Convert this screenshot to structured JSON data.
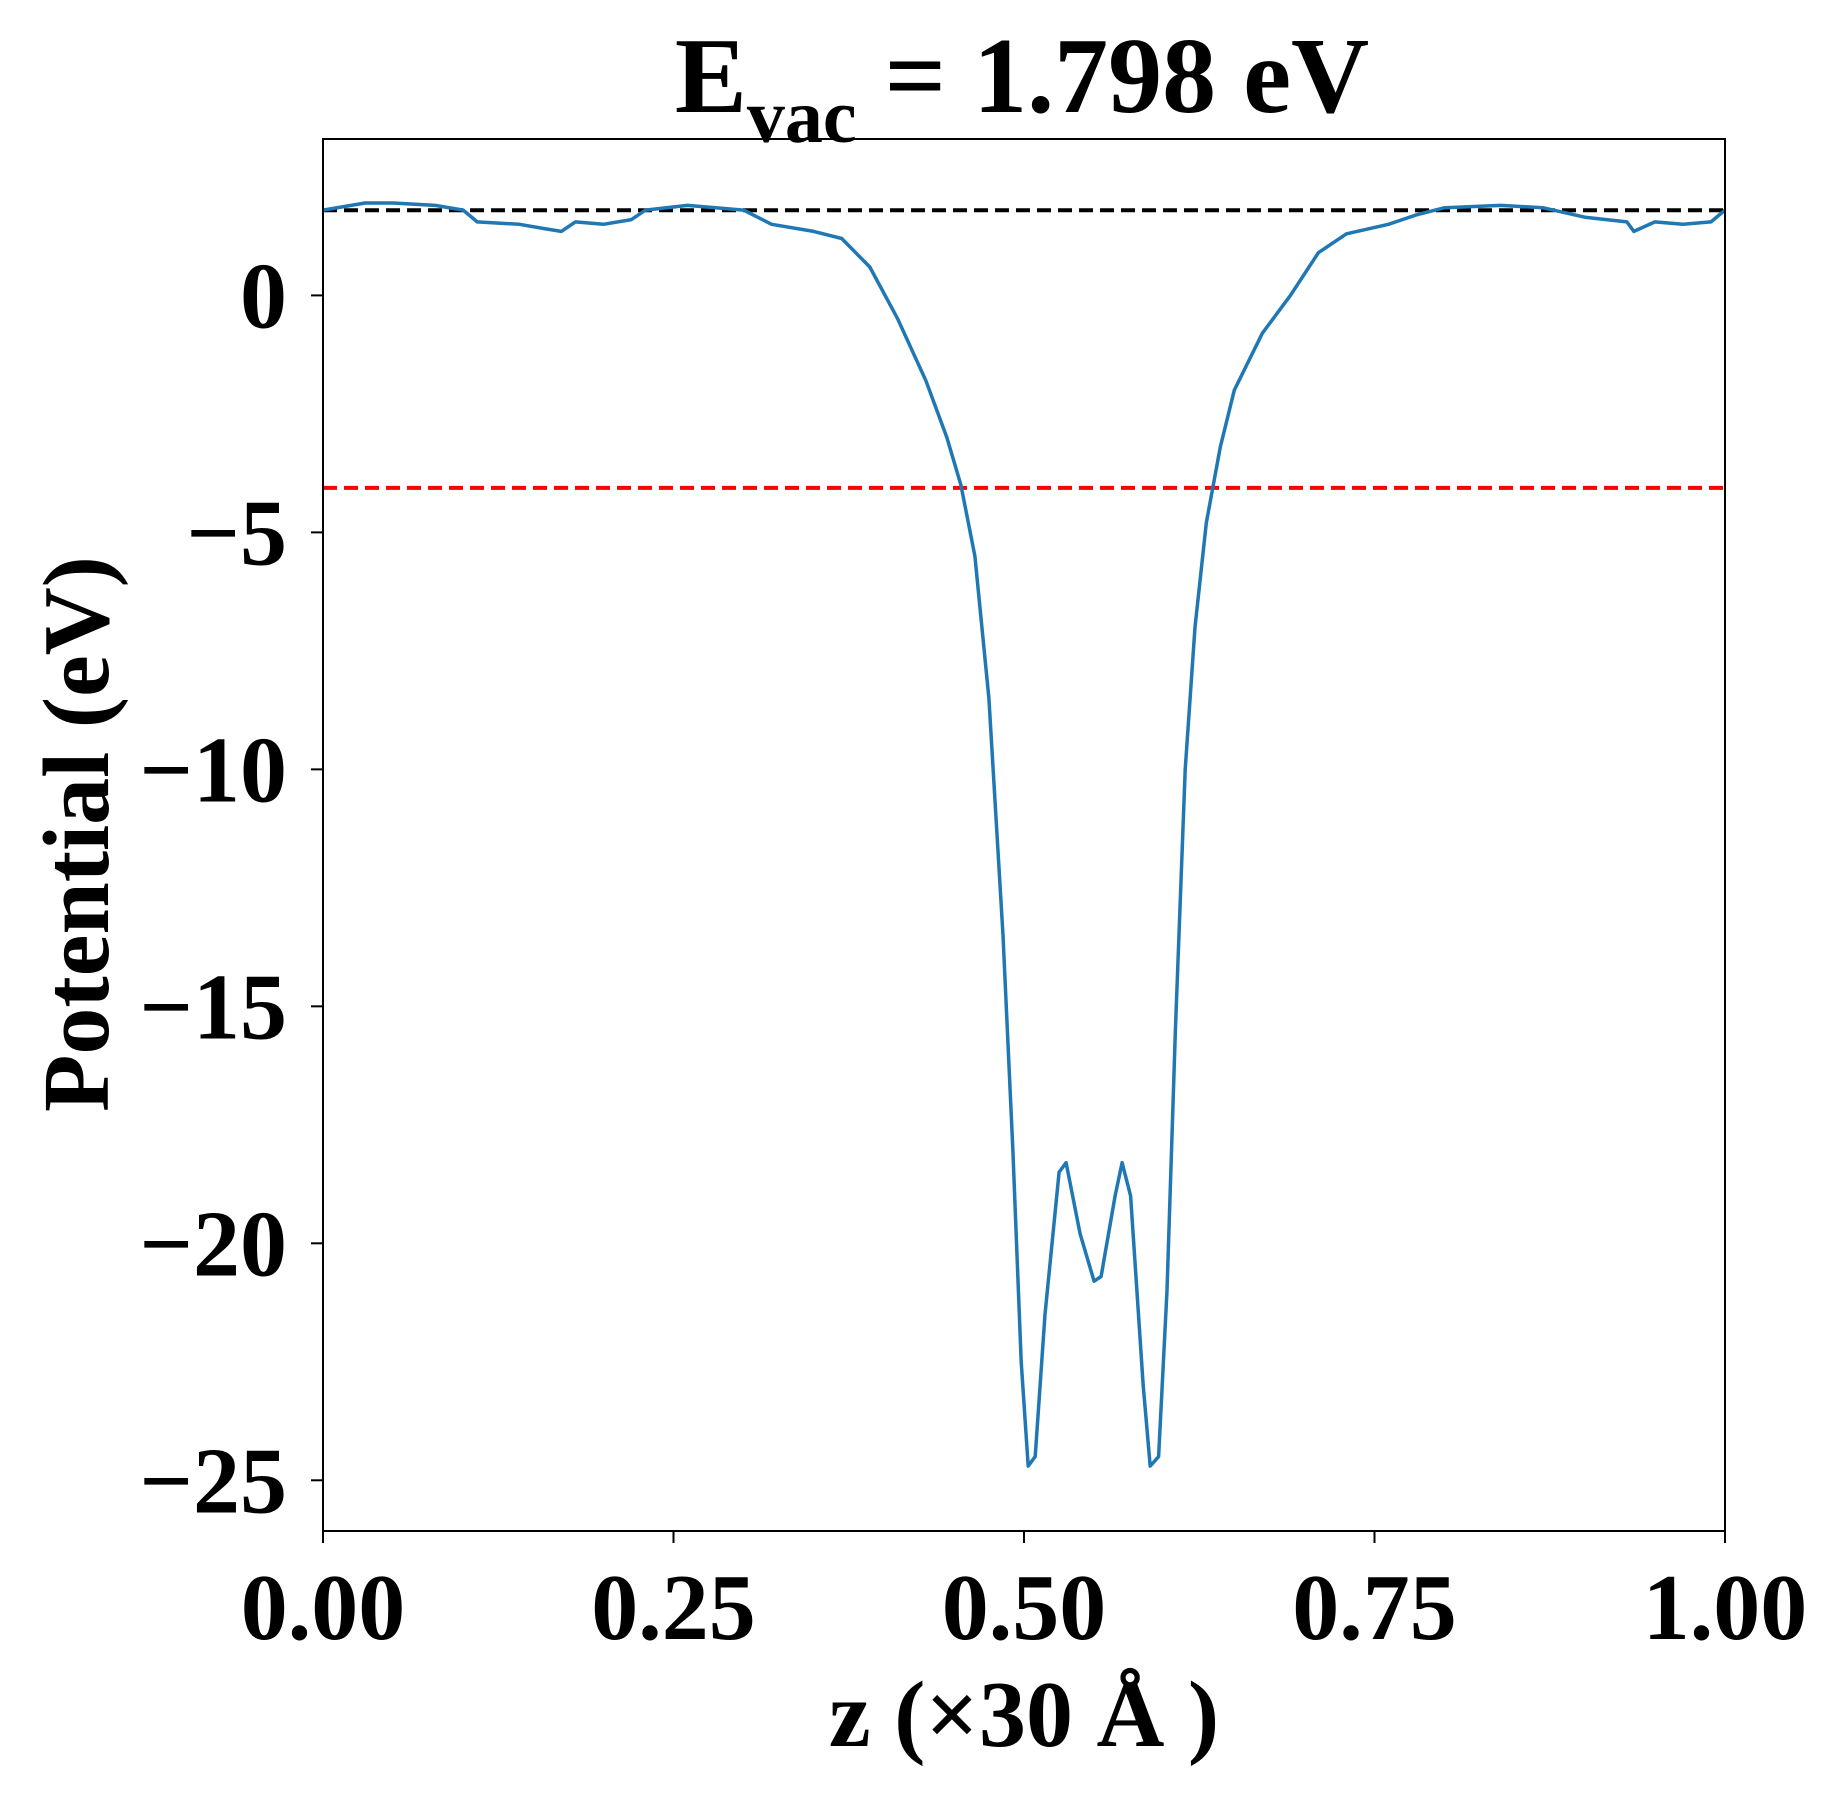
{
  "chart_data": {
    "type": "line",
    "title": {
      "main": "E",
      "sub": "vac",
      "rest": "= 1.798 eV"
    },
    "xlabel": "z (×30 Å )",
    "ylabel": "Potential (eV)",
    "xlim": [
      0,
      1
    ],
    "ylim": [
      -26.07,
      3.3
    ],
    "xticks": [
      {
        "value": 0,
        "label": "0.00"
      },
      {
        "value": 0.25,
        "label": "0.25"
      },
      {
        "value": 0.5,
        "label": "0.50"
      },
      {
        "value": 0.75,
        "label": "0.75"
      },
      {
        "value": 1,
        "label": "1.00"
      }
    ],
    "yticks": [
      0,
      {
        "value": -5,
        "label": "−5"
      },
      {
        "value": -10,
        "label": "−10"
      },
      {
        "value": -15,
        "label": "−15"
      },
      {
        "value": -20,
        "label": "−20"
      },
      {
        "value": -25,
        "label": "−25"
      }
    ],
    "hlines": [
      {
        "value": 1.798,
        "color": "#000000"
      },
      {
        "value": -4.06,
        "color": "#ff0000"
      }
    ],
    "x": [
      0,
      0.03,
      0.05,
      0.08,
      0.1,
      0.11,
      0.14,
      0.16,
      0.17,
      0.18,
      0.2,
      0.22,
      0.23,
      0.26,
      0.3,
      0.32,
      0.35,
      0.37,
      0.39,
      0.41,
      0.43,
      0.445,
      0.455,
      0.465,
      0.475,
      0.485,
      0.492,
      0.498,
      0.503,
      0.508,
      0.515,
      0.525,
      0.53,
      0.54,
      0.55,
      0.555,
      0.565,
      0.57,
      0.576,
      0.585,
      0.59,
      0.596,
      0.602,
      0.608,
      0.615,
      0.622,
      0.63,
      0.64,
      0.65,
      0.67,
      0.69,
      0.71,
      0.73,
      0.76,
      0.78,
      0.8,
      0.84,
      0.87,
      0.9,
      0.93,
      0.935,
      0.95,
      0.97,
      0.99,
      1.0
    ],
    "series": [
      {
        "color": "#1f77b4",
        "values": [
          1.8,
          1.95,
          1.95,
          1.9,
          1.8,
          1.55,
          1.5,
          1.4,
          1.35,
          1.55,
          1.5,
          1.6,
          1.8,
          1.9,
          1.8,
          1.5,
          1.35,
          1.2,
          0.6,
          -0.5,
          -1.8,
          -3.0,
          -4.0,
          -5.5,
          -8.5,
          -13.5,
          -18,
          -22.5,
          -24.7,
          -24.5,
          -21.5,
          -18.5,
          -18.3,
          -19.8,
          -20.8,
          -20.7,
          -19.0,
          -18.3,
          -19,
          -23,
          -24.7,
          -24.5,
          -21,
          -15.5,
          -10,
          -7,
          -4.8,
          -3.2,
          -2.0,
          -0.8,
          0.0,
          0.9,
          1.3,
          1.5,
          1.7,
          1.85,
          1.9,
          1.85,
          1.65,
          1.55,
          1.35,
          1.55,
          1.5,
          1.55,
          1.8
        ]
      }
    ]
  }
}
